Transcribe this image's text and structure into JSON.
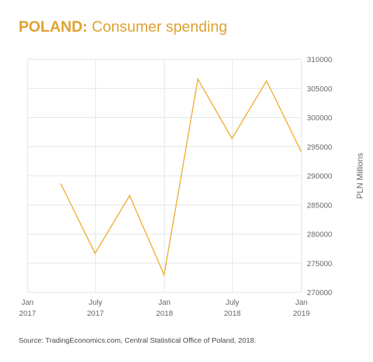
{
  "header": {
    "title_strong": "POLAND:",
    "title_rest": "Consumer spending"
  },
  "source": "Source: TradingEconomics.com, Central Statistical Office of Poland, 2018.",
  "colors": {
    "accent": "#e0a231",
    "line": "#f0b23e",
    "grid": "#dfe4ea",
    "axis_text": "#666666"
  },
  "chart_data": {
    "type": "line",
    "title": "POLAND: Consumer spending",
    "xlabel": "",
    "ylabel": "PLN Millions",
    "x_ticks": [
      {
        "date": "2017-01",
        "line1": "Jan",
        "line2": "2017"
      },
      {
        "date": "2017-07",
        "line1": "July",
        "line2": "2017"
      },
      {
        "date": "2018-01",
        "line1": "Jan",
        "line2": "2018"
      },
      {
        "date": "2018-07",
        "line1": "July",
        "line2": "2018"
      },
      {
        "date": "2019-01",
        "line1": "Jan",
        "line2": "2019"
      }
    ],
    "xlim": [
      "2017-01",
      "2019-01"
    ],
    "ylim": [
      270000,
      310000
    ],
    "y_ticks": [
      270000,
      275000,
      280000,
      285000,
      290000,
      295000,
      300000,
      305000,
      310000
    ],
    "y_axis_side": "right",
    "grid": true,
    "series": [
      {
        "x": [
          "2017-03-31",
          "2017-06-30",
          "2017-09-30",
          "2017-12-31",
          "2018-03-31",
          "2018-06-30",
          "2018-09-30",
          "2018-12-31"
        ],
        "values": [
          288600,
          276700,
          286600,
          273000,
          306600,
          296400,
          306300,
          294200
        ]
      }
    ]
  }
}
